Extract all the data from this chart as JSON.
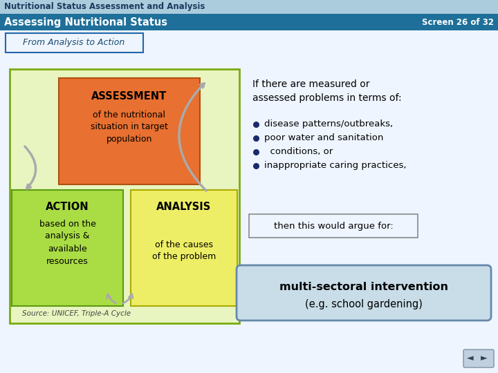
{
  "title_bar1": "Nutritional Status Assessment and Analysis",
  "title_bar2": "Assessing Nutritional Status",
  "screen_text": "Screen 26 of 32",
  "subtitle": "From Analysis to Action",
  "color_bar1": "#aaccdd",
  "color_bar2": "#1e6f99",
  "color_title1_text": "#1a3a5c",
  "color_title2_text": "#ffffff",
  "bg_color": "#ddeeff",
  "main_bg": "#eef5ff",
  "left_panel_bg": "#e8f5c0",
  "left_panel_border": "#7aaa10",
  "assessment_box_bg": "#e87030",
  "assessment_box_border": "#b05010",
  "action_box_bg": "#aadd44",
  "action_box_border": "#5a9910",
  "analysis_box_bg": "#eeee66",
  "analysis_box_border": "#aaaa00",
  "subtitle_border": "#2266aa",
  "then_box_border": "#888888",
  "multi_box_bg": "#c8dde8",
  "multi_box_border": "#6688aa",
  "bullet_color": "#1a2a6e",
  "arrow_color": "#aaaaaa",
  "source_color": "#444444"
}
